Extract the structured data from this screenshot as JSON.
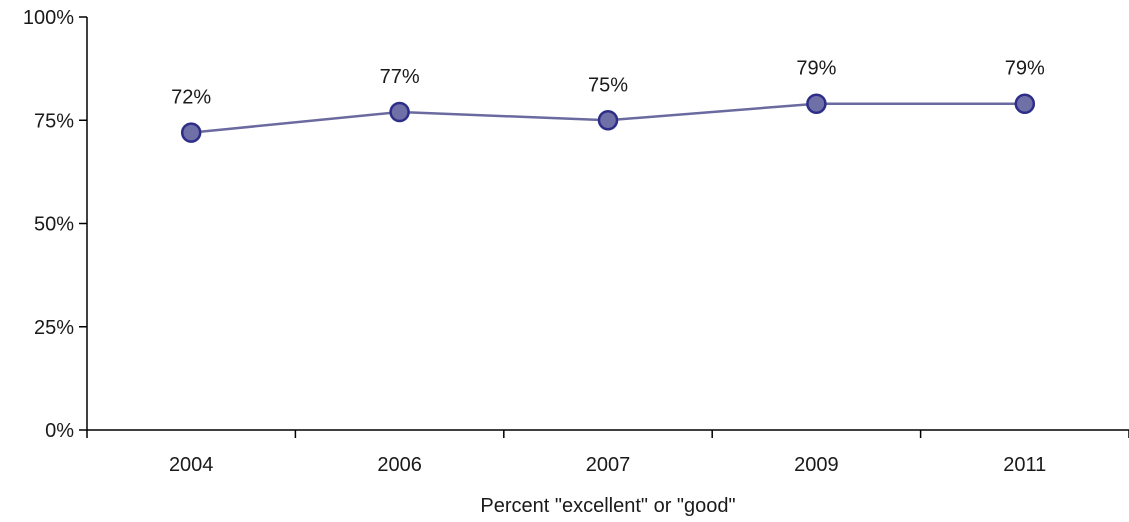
{
  "chart_data": {
    "type": "line",
    "title": "",
    "xlabel": "Percent \"excellent\" or \"good\"",
    "ylabel": "",
    "categories": [
      "2004",
      "2006",
      "2007",
      "2009",
      "2011"
    ],
    "series": [
      {
        "values": [
          72,
          77,
          75,
          79,
          79
        ],
        "data_labels": [
          "72%",
          "77%",
          "75%",
          "79%",
          "79%"
        ],
        "color": "#7070a8",
        "marker_stroke": "#2e2e88",
        "line_color": "#6a6aa0"
      }
    ],
    "ylim": [
      0,
      100
    ],
    "y_ticks": [
      0,
      25,
      50,
      75,
      100
    ],
    "y_tick_labels": [
      "0%",
      "25%",
      "50%",
      "75%",
      "100%"
    ],
    "grid": false,
    "legend": "none"
  }
}
